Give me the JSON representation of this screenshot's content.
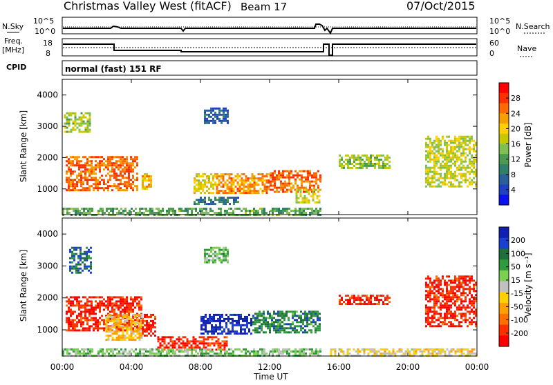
{
  "header": {
    "station": "Christmas Valley West (fitACF)",
    "beam": "Beam 17",
    "date": "07/Oct/2015"
  },
  "noise_panel": {
    "left_label": "N.Sky",
    "left_ticks": [
      "10^5",
      "10^0"
    ],
    "right_ticks": [
      "10^5",
      "10^0"
    ],
    "right_label": "N.Search"
  },
  "freq_panel": {
    "left_label_1": "Freq.",
    "left_label_2": "[MHz]",
    "left_ticks": [
      "18",
      "8"
    ],
    "right_ticks": [
      "60",
      "0"
    ],
    "right_label": "Nave"
  },
  "cpid": {
    "label": "CPID",
    "value": "normal (fast) 151 RF"
  },
  "power_panel": {
    "ylabel": "Slant Range [km]",
    "yticks": [
      "4000",
      "3000",
      "2000",
      "1000"
    ],
    "colorbar_label": "Power [dB]",
    "colorbar_ticks": [
      "28",
      "24",
      "20",
      "16",
      "12",
      "8",
      "4"
    ],
    "colorbar_colors": [
      "#ff0000",
      "#ff3000",
      "#ff6a00",
      "#f5a000",
      "#ffd000",
      "#c8c800",
      "#7fc050",
      "#4a9a50",
      "#2f7f6a",
      "#2a5f9a",
      "#1f40c0",
      "#0a10f0"
    ]
  },
  "velocity_panel": {
    "ylabel": "Slant Range [km]",
    "yticks": [
      "4000",
      "3000",
      "2000",
      "1000"
    ],
    "colorbar_label": "Velocity [m s⁻¹]",
    "colorbar_ticks": [
      "200",
      "100",
      "50",
      "15",
      "-15",
      "-50",
      "-100",
      "-200"
    ],
    "colorbar_colors": [
      "#1020b0",
      "#1a40d0",
      "#1f6f3a",
      "#2f9a3f",
      "#7ad050",
      "#c0c0c0",
      "#ffd000",
      "#ffa000",
      "#ff7000",
      "#ff3000",
      "#ff0000"
    ]
  },
  "xaxis": {
    "ticks": [
      "00:00",
      "04:00",
      "08:00",
      "12:00",
      "16:00",
      "20:00",
      "00:00"
    ],
    "label": "Time UT"
  },
  "chart_data": [
    {
      "type": "heatmap",
      "title": "Power [dB]",
      "xlabel": "Time UT",
      "ylabel": "Slant Range [km]",
      "x_range_hours": [
        0,
        24
      ],
      "y_range_km": [
        180,
        4500
      ],
      "color_range": [
        0,
        30
      ],
      "regions": [
        {
          "t0": 0.1,
          "t1": 1.6,
          "r0": 2800,
          "r1": 3450,
          "v": 15
        },
        {
          "t0": 0.2,
          "t1": 4.4,
          "r0": 950,
          "r1": 2050,
          "v": 24
        },
        {
          "t0": 4.6,
          "t1": 5.2,
          "r0": 1000,
          "r1": 1500,
          "v": 20
        },
        {
          "t0": 7.6,
          "t1": 9.0,
          "r0": 900,
          "r1": 1500,
          "v": 18
        },
        {
          "t0": 8.9,
          "t1": 12.0,
          "r0": 900,
          "r1": 1500,
          "v": 22
        },
        {
          "t0": 12.0,
          "t1": 14.9,
          "r0": 900,
          "r1": 1600,
          "v": 24
        },
        {
          "t0": 7.6,
          "t1": 10.2,
          "r0": 500,
          "r1": 750,
          "v": 8
        },
        {
          "t0": 0.0,
          "t1": 15.0,
          "r0": 200,
          "r1": 400,
          "v": 12
        },
        {
          "t0": 13.5,
          "t1": 14.9,
          "r0": 600,
          "r1": 1000,
          "v": 16
        },
        {
          "t0": 16.0,
          "t1": 19.0,
          "r0": 1700,
          "r1": 2100,
          "v": 14
        },
        {
          "t0": 21.0,
          "t1": 24.0,
          "r0": 1100,
          "r1": 2700,
          "v": 16
        },
        {
          "t0": 8.2,
          "t1": 9.6,
          "r0": 3100,
          "r1": 3600,
          "v": 6
        }
      ]
    },
    {
      "type": "heatmap",
      "title": "Velocity [m s⁻¹]",
      "xlabel": "Time UT",
      "ylabel": "Slant Range [km]",
      "x_range_hours": [
        0,
        24
      ],
      "y_range_km": [
        180,
        4500
      ],
      "color_range": [
        -250,
        250
      ],
      "regions": [
        {
          "t0": 0.4,
          "t1": 1.7,
          "r0": 2800,
          "r1": 3600,
          "v": 150
        },
        {
          "t0": 0.2,
          "t1": 4.6,
          "r0": 950,
          "r1": 2050,
          "v": -200
        },
        {
          "t0": 2.5,
          "t1": 4.6,
          "r0": 700,
          "r1": 1500,
          "v": -60
        },
        {
          "t0": 4.6,
          "t1": 5.4,
          "r0": 800,
          "r1": 1500,
          "v": -200
        },
        {
          "t0": 5.5,
          "t1": 9.5,
          "r0": 400,
          "r1": 800,
          "v": -200
        },
        {
          "t0": 8.0,
          "t1": 11.0,
          "r0": 900,
          "r1": 1500,
          "v": 220
        },
        {
          "t0": 11.0,
          "t1": 14.9,
          "r0": 900,
          "r1": 1600,
          "v": 120
        },
        {
          "t0": 0.0,
          "t1": 15.0,
          "r0": 200,
          "r1": 420,
          "v": 50
        },
        {
          "t0": 15.5,
          "t1": 24.0,
          "r0": 200,
          "r1": 420,
          "v": -30
        },
        {
          "t0": 16.0,
          "t1": 19.0,
          "r0": 1800,
          "r1": 2100,
          "v": -200
        },
        {
          "t0": 21.0,
          "t1": 24.0,
          "r0": 1100,
          "r1": 2700,
          "v": -200
        },
        {
          "t0": 8.2,
          "t1": 9.6,
          "r0": 3100,
          "r1": 3600,
          "v": 60
        }
      ]
    }
  ]
}
